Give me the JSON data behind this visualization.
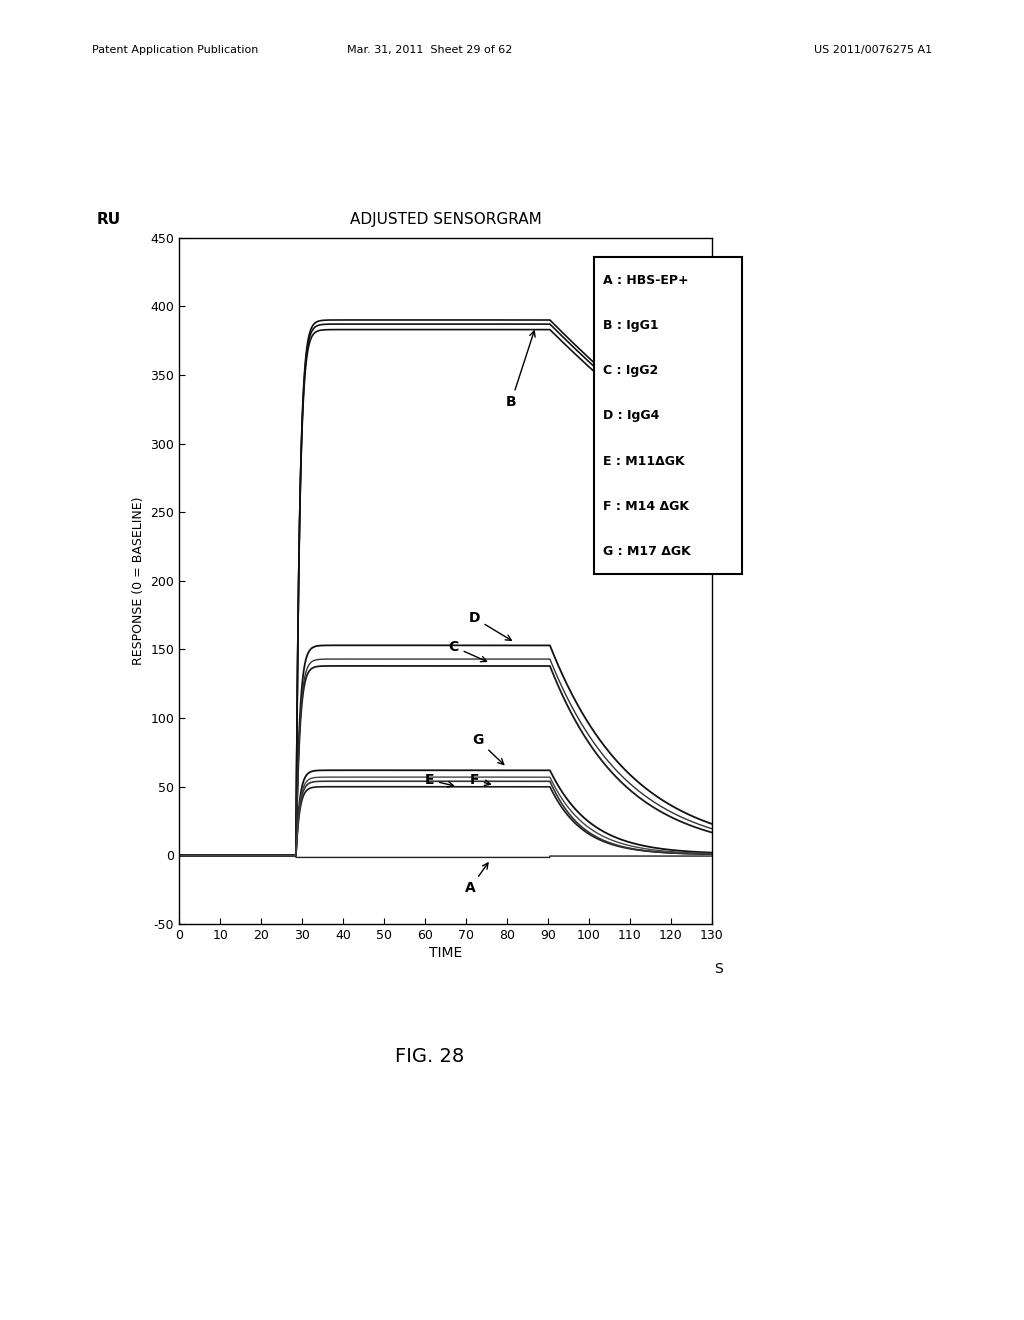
{
  "title": "ADJUSTED SENSORGRAM",
  "xlabel": "TIME",
  "xlabel_suffix": "S",
  "ylabel": "RESPONSE (0 = BASELINE)",
  "ru_label": "RU",
  "fig_label": "FIG. 28",
  "patent_header_left": "Patent Application Publication",
  "patent_header_mid": "Mar. 31, 2011  Sheet 29 of 62",
  "patent_header_right": "US 2011/0076275 A1",
  "xlim": [
    0,
    130
  ],
  "ylim": [
    -50,
    450
  ],
  "xticks": [
    0,
    10,
    20,
    30,
    40,
    50,
    60,
    70,
    80,
    90,
    100,
    110,
    120,
    130
  ],
  "yticks": [
    -50,
    0,
    50,
    100,
    150,
    200,
    250,
    300,
    350,
    400,
    450
  ],
  "rise_time": 28.5,
  "fall_time": 90.5,
  "legend_entries": [
    "A : HBS-EP+",
    "B : IgG1",
    "C : IgG2",
    "D : IgG4",
    "E : M11ΔGK",
    "F : M14 ΔGK",
    "G : M17 ΔGK"
  ],
  "background_color": "#ffffff"
}
